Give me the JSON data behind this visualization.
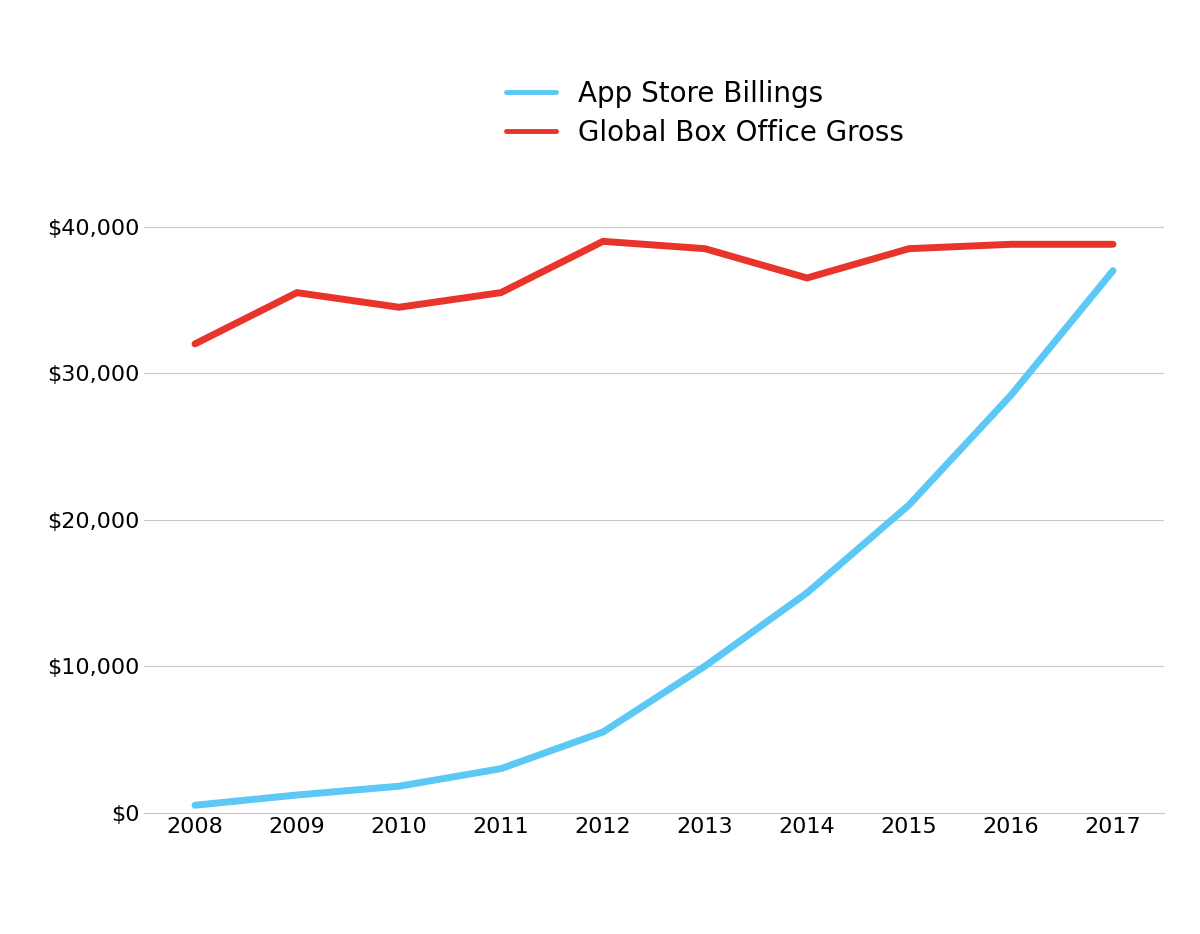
{
  "years": [
    2008,
    2009,
    2010,
    2011,
    2012,
    2013,
    2014,
    2015,
    2016,
    2017
  ],
  "app_store": [
    500,
    1200,
    1800,
    3000,
    5500,
    10000,
    15000,
    21000,
    28500,
    37000
  ],
  "box_office": [
    32000,
    35500,
    34500,
    35500,
    39000,
    38500,
    36500,
    38500,
    38800,
    38800
  ],
  "app_store_color": "#5bc8f5",
  "box_office_color": "#e8342a",
  "app_store_label": "App Store Billings",
  "box_office_label": "Global Box Office Gross",
  "background_color": "#ffffff",
  "grid_color": "#c8c8c8",
  "line_width": 5.0,
  "ylim": [
    0,
    44000
  ],
  "yticks": [
    0,
    10000,
    20000,
    30000,
    40000
  ],
  "tick_fontsize": 16,
  "legend_fontsize": 20,
  "fig_width": 12.0,
  "fig_height": 9.34
}
